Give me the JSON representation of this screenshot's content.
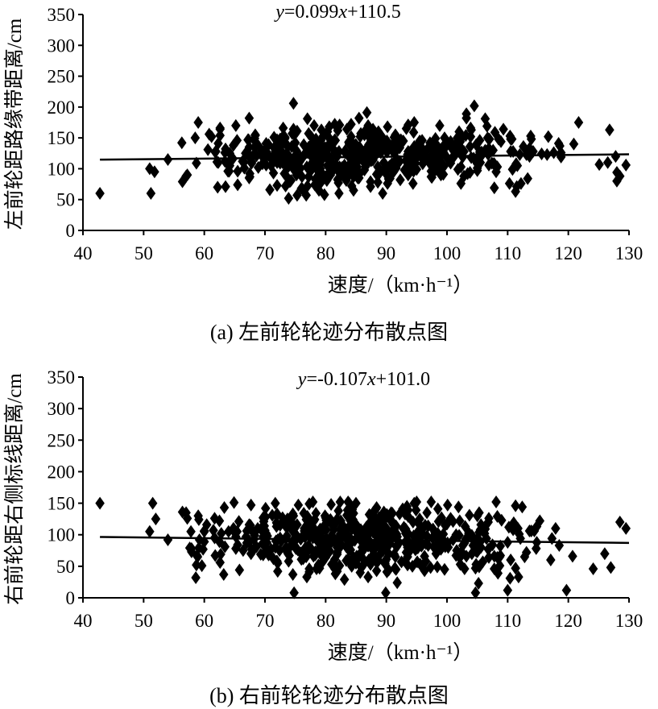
{
  "chart_data": [
    {
      "type": "scatter",
      "equation": {
        "y": "y",
        "rest": "=0.099",
        "x": "x",
        "tail": "+110.5"
      },
      "regression": {
        "slope": 0.099,
        "intercept": 110.5
      },
      "xlabel": "速度/（km·h⁻¹）",
      "ylabel": "左前轮距路缘带距离/cm",
      "xlim": [
        40,
        130
      ],
      "ylim": [
        0,
        350
      ],
      "xticks": [
        "40",
        "50",
        "60",
        "70",
        "80",
        "90",
        "100",
        "110",
        "120",
        "130"
      ],
      "yticks": [
        "0",
        "50",
        "100",
        "150",
        "200",
        "250",
        "300",
        "350"
      ],
      "caption": "(a) 左前轮轮迹分布散点图",
      "grid": false,
      "marker": "diamond",
      "points": []
    },
    {
      "type": "scatter",
      "equation": {
        "y": "y",
        "rest": "=-0.107",
        "x": "x",
        "tail": "+101.0"
      },
      "regression": {
        "slope": -0.107,
        "intercept": 101.0
      },
      "xlabel": "速度/（km·h⁻¹）",
      "ylabel": "右前轮距右侧标线距离/cm",
      "xlim": [
        40,
        130
      ],
      "ylim": [
        0,
        350
      ],
      "xticks": [
        "40",
        "50",
        "60",
        "70",
        "80",
        "90",
        "100",
        "110",
        "120",
        "130"
      ],
      "yticks": [
        "0",
        "50",
        "100",
        "150",
        "200",
        "250",
        "300",
        "350"
      ],
      "caption": "(b) 右前轮轮迹分布散点图",
      "grid": false,
      "marker": "diamond",
      "points": []
    }
  ]
}
